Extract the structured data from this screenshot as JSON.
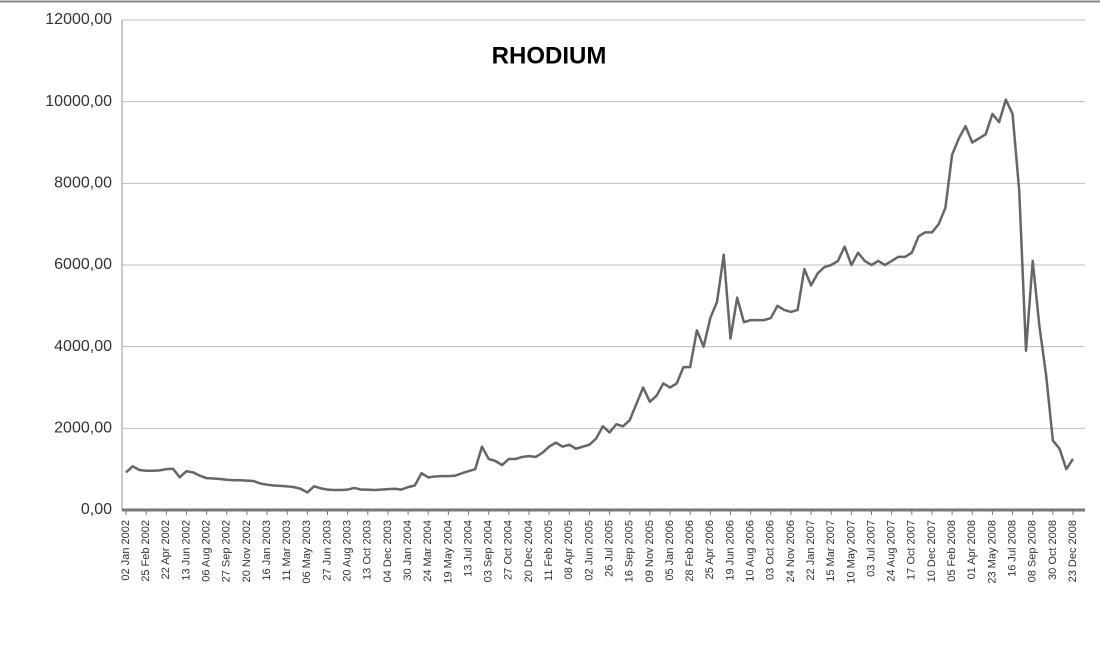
{
  "chart_data": {
    "type": "line",
    "title": "RHODIUM",
    "categories": [
      "02 Jan 2002",
      null,
      null,
      "25 Feb 2002",
      null,
      null,
      "22 Apr 2002",
      null,
      null,
      "13 Jun 2002",
      null,
      null,
      "06 Aug 2002",
      null,
      null,
      "27 Sep 2002",
      null,
      null,
      "20 Nov 2002",
      null,
      null,
      "16 Jan 2003",
      null,
      null,
      "11 Mar 2003",
      null,
      null,
      "06 May 2003",
      null,
      null,
      "27 Jun 2003",
      null,
      null,
      "20 Aug 2003",
      null,
      null,
      "13 Oct 2003",
      null,
      null,
      "04 Dec 2003",
      null,
      null,
      "30 Jan 2004",
      null,
      null,
      "24 Mar 2004",
      null,
      null,
      "19 May 2004",
      null,
      null,
      "13 Jul 2004",
      null,
      null,
      "03 Sep 2004",
      null,
      null,
      "27 Oct 2004",
      null,
      null,
      "20 Dec 2004",
      null,
      null,
      "11 Feb 2005",
      null,
      null,
      "08 Apr 2005",
      null,
      null,
      "02 Jun 2005",
      null,
      null,
      "26 Jul 2005",
      null,
      null,
      "16 Sep 2005",
      null,
      null,
      "09 Nov 2005",
      null,
      null,
      "05 Jan 2006",
      null,
      null,
      "28 Feb 2006",
      null,
      null,
      "25 Apr 2006",
      null,
      null,
      "19 Jun 2006",
      null,
      null,
      "10 Aug 2006",
      null,
      null,
      "03 Oct 2006",
      null,
      null,
      "24 Nov 2006",
      null,
      null,
      "22 Jan 2007",
      null,
      null,
      "15 Mar 2007",
      null,
      null,
      "10 May 2007",
      null,
      null,
      "03 Jul 2007",
      null,
      null,
      "24 Aug 2007",
      null,
      null,
      "17 Oct 2007",
      null,
      null,
      "10 Dec 2007",
      null,
      null,
      "05 Feb 2008",
      null,
      null,
      "01 Apr 2008",
      null,
      null,
      "23 May 2008",
      null,
      null,
      "16 Jul 2008",
      null,
      null,
      "08 Sep 2008",
      null,
      null,
      "30 Oct 2008",
      null,
      null,
      "23 Dec 2008"
    ],
    "values": [
      920,
      1070,
      980,
      960,
      960,
      970,
      1000,
      1010,
      800,
      950,
      920,
      840,
      780,
      770,
      760,
      740,
      730,
      730,
      720,
      710,
      650,
      620,
      600,
      590,
      580,
      560,
      520,
      430,
      580,
      530,
      500,
      490,
      490,
      500,
      540,
      500,
      500,
      490,
      500,
      510,
      520,
      500,
      560,
      600,
      900,
      800,
      820,
      830,
      830,
      840,
      900,
      950,
      1000,
      1550,
      1250,
      1200,
      1100,
      1250,
      1250,
      1300,
      1320,
      1300,
      1400,
      1550,
      1650,
      1550,
      1600,
      1500,
      1550,
      1600,
      1750,
      2050,
      1900,
      2100,
      2050,
      2200,
      2600,
      3000,
      2650,
      2800,
      3100,
      3000,
      3100,
      3500,
      3500,
      4400,
      4000,
      4700,
      5100,
      6250,
      4200,
      5200,
      4600,
      4650,
      4650,
      4650,
      4700,
      5000,
      4900,
      4850,
      4900,
      5900,
      5500,
      5800,
      5950,
      6000,
      6100,
      6450,
      6000,
      6300,
      6100,
      6000,
      6100,
      6000,
      6100,
      6200,
      6200,
      6300,
      6700,
      6800,
      6800,
      7000,
      7400,
      8700,
      9100,
      9400,
      9000,
      9100,
      9200,
      9700,
      9500,
      10050,
      9700,
      7800,
      3900,
      6100,
      4500,
      3300,
      1700,
      1500,
      1000,
      1250
    ],
    "color": "#666666",
    "ylim": [
      0,
      12000
    ],
    "yticks": [
      {
        "value": 0,
        "label": "0,00"
      },
      {
        "value": 2000,
        "label": "2000,00"
      },
      {
        "value": 4000,
        "label": "4000,00"
      },
      {
        "value": 6000,
        "label": "6000,00"
      },
      {
        "value": 8000,
        "label": "8000,00"
      },
      {
        "value": 10000,
        "label": "10000,00"
      },
      {
        "value": 12000,
        "label": "12000,00"
      }
    ],
    "grid": true
  }
}
